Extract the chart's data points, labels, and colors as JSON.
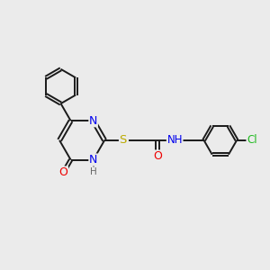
{
  "bg_color": "#ebebeb",
  "bond_color": "#1a1a1a",
  "atom_colors": {
    "N": "#0000ee",
    "O": "#ee0000",
    "S": "#bbaa00",
    "Cl": "#22bb22",
    "H": "#666666",
    "C": "#1a1a1a"
  },
  "font_size": 8.5,
  "line_width": 1.4
}
